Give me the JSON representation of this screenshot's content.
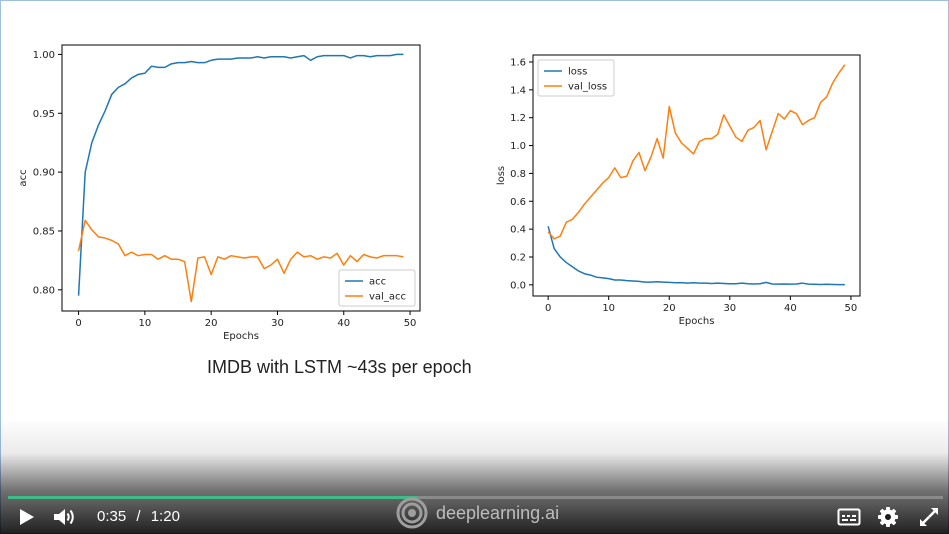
{
  "caption": "IMDB with LSTM ~43s per epoch",
  "player": {
    "current_time": "0:35",
    "separator": "/",
    "duration": "1:20",
    "progress_fraction": 0.4375,
    "brand": "deeplearning.ai",
    "accent": "#3fbb8a",
    "icons": [
      "play-icon",
      "volume-icon",
      "captions-icon",
      "settings-gear-icon",
      "fullscreen-icon",
      "deeplearning-logo-icon"
    ]
  },
  "chart_data": [
    {
      "type": "line",
      "title": "",
      "xlabel": "Epochs",
      "ylabel": "acc",
      "xlim": [
        -2.5,
        51.5
      ],
      "ylim": [
        0.782,
        1.008
      ],
      "xticks": [
        0,
        10,
        20,
        30,
        40,
        50
      ],
      "yticks": [
        0.8,
        0.85,
        0.9,
        0.95,
        1.0
      ],
      "ytick_labels": [
        "0.80",
        "0.85",
        "0.90",
        "0.95",
        "1.00"
      ],
      "legend": "lower-right",
      "grid": false,
      "series": [
        {
          "name": "acc",
          "color": "#1f77b4",
          "values": [
            0.795,
            0.9,
            0.925,
            0.94,
            0.952,
            0.966,
            0.972,
            0.975,
            0.98,
            0.983,
            0.984,
            0.99,
            0.989,
            0.989,
            0.992,
            0.993,
            0.993,
            0.994,
            0.993,
            0.993,
            0.995,
            0.996,
            0.996,
            0.996,
            0.997,
            0.997,
            0.997,
            0.998,
            0.997,
            0.998,
            0.998,
            0.998,
            0.997,
            0.998,
            0.999,
            0.995,
            0.998,
            0.999,
            0.999,
            0.999,
            0.999,
            0.997,
            0.999,
            0.999,
            0.998,
            0.999,
            0.999,
            0.999,
            1.0,
            1.0
          ]
        },
        {
          "name": "val_acc",
          "color": "#ff7f0e",
          "values": [
            0.833,
            0.859,
            0.851,
            0.845,
            0.844,
            0.842,
            0.839,
            0.829,
            0.832,
            0.829,
            0.83,
            0.83,
            0.826,
            0.829,
            0.826,
            0.826,
            0.824,
            0.79,
            0.827,
            0.828,
            0.813,
            0.828,
            0.826,
            0.829,
            0.828,
            0.827,
            0.828,
            0.828,
            0.818,
            0.821,
            0.826,
            0.814,
            0.826,
            0.832,
            0.828,
            0.829,
            0.826,
            0.828,
            0.827,
            0.831,
            0.821,
            0.829,
            0.824,
            0.83,
            0.828,
            0.827,
            0.829,
            0.829,
            0.829,
            0.828
          ]
        }
      ]
    },
    {
      "type": "line",
      "title": "",
      "xlabel": "Epochs",
      "ylabel": "loss",
      "xlim": [
        -2.5,
        51.5
      ],
      "ylim": [
        -0.08,
        1.65
      ],
      "xticks": [
        0,
        10,
        20,
        30,
        40,
        50
      ],
      "yticks": [
        0.0,
        0.2,
        0.4,
        0.6,
        0.8,
        1.0,
        1.2,
        1.4,
        1.6
      ],
      "ytick_labels": [
        "0.0",
        "0.2",
        "0.4",
        "0.6",
        "0.8",
        "1.0",
        "1.2",
        "1.4",
        "1.6"
      ],
      "legend": "upper-left",
      "grid": false,
      "series": [
        {
          "name": "loss",
          "color": "#1f77b4",
          "values": [
            0.42,
            0.26,
            0.2,
            0.16,
            0.13,
            0.1,
            0.08,
            0.07,
            0.055,
            0.05,
            0.045,
            0.035,
            0.035,
            0.03,
            0.028,
            0.025,
            0.02,
            0.02,
            0.022,
            0.02,
            0.018,
            0.015,
            0.016,
            0.012,
            0.015,
            0.012,
            0.012,
            0.01,
            0.012,
            0.01,
            0.008,
            0.008,
            0.012,
            0.008,
            0.006,
            0.008,
            0.018,
            0.006,
            0.005,
            0.006,
            0.005,
            0.006,
            0.012,
            0.005,
            0.004,
            0.003,
            0.004,
            0.003,
            0.002,
            0.002
          ]
        },
        {
          "name": "val_loss",
          "color": "#ff7f0e",
          "values": [
            0.38,
            0.33,
            0.35,
            0.45,
            0.47,
            0.52,
            0.58,
            0.63,
            0.68,
            0.73,
            0.77,
            0.84,
            0.77,
            0.78,
            0.89,
            0.95,
            0.82,
            0.92,
            1.05,
            0.91,
            1.28,
            1.09,
            1.02,
            0.98,
            0.94,
            1.03,
            1.05,
            1.05,
            1.08,
            1.22,
            1.14,
            1.06,
            1.03,
            1.11,
            1.13,
            1.18,
            0.97,
            1.1,
            1.23,
            1.19,
            1.25,
            1.23,
            1.15,
            1.18,
            1.2,
            1.31,
            1.35,
            1.45,
            1.52,
            1.58
          ]
        }
      ]
    }
  ]
}
